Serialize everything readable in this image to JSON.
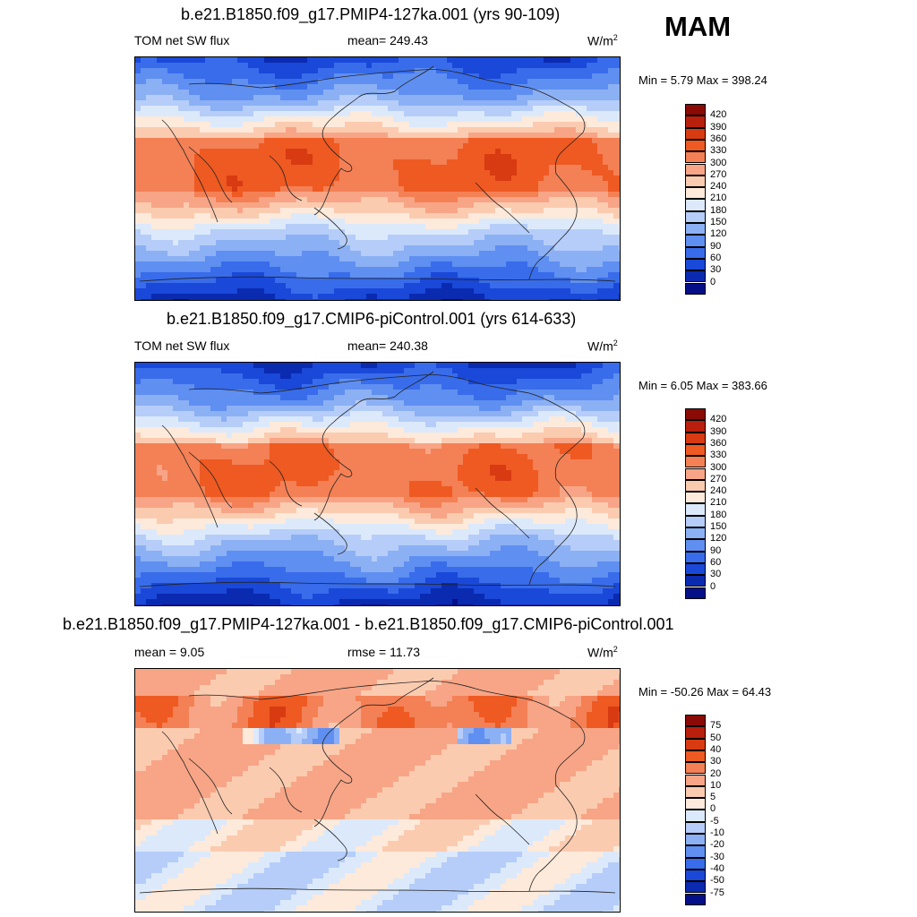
{
  "season": "MAM",
  "panels": [
    {
      "title": "b.e21.B1850.f09_g17.PMIP4-127ka.001 (yrs 90-109)",
      "left_label": "TOM net SW flux",
      "center_label": "mean= 249.43",
      "units": "W/m",
      "units_exp": "2",
      "minmax": "Min =   5.79 Max = 398.24",
      "colorbar_labels": [
        "420",
        "390",
        "360",
        "330",
        "300",
        "270",
        "240",
        "210",
        "180",
        "150",
        "120",
        "90",
        "60",
        "30",
        "0"
      ],
      "colorbar_colors": [
        "#8a0a05",
        "#b81f0c",
        "#d83a12",
        "#ee5a22",
        "#f48055",
        "#f7a586",
        "#fbcbb0",
        "#fdeadb",
        "#dce9fb",
        "#b5cdf8",
        "#8cb0f4",
        "#5f8ff0",
        "#386cea",
        "#1a48d8",
        "#0a2ab0",
        "#050f88"
      ]
    },
    {
      "title": "b.e21.B1850.f09_g17.CMIP6-piControl.001 (yrs 614-633)",
      "left_label": "TOM net SW flux",
      "center_label": "mean= 240.38",
      "units": "W/m",
      "units_exp": "2",
      "minmax": "Min =   6.05 Max = 383.66",
      "colorbar_labels": [
        "420",
        "390",
        "360",
        "330",
        "300",
        "270",
        "240",
        "210",
        "180",
        "150",
        "120",
        "90",
        "60",
        "30",
        "0"
      ],
      "colorbar_colors": [
        "#8a0a05",
        "#b81f0c",
        "#d83a12",
        "#ee5a22",
        "#f48055",
        "#f7a586",
        "#fbcbb0",
        "#fdeadb",
        "#dce9fb",
        "#b5cdf8",
        "#8cb0f4",
        "#5f8ff0",
        "#386cea",
        "#1a48d8",
        "#0a2ab0",
        "#050f88"
      ]
    },
    {
      "title": "b.e21.B1850.f09_g17.PMIP4-127ka.001 - b.e21.B1850.f09_g17.CMIP6-piControl.001",
      "left_label": "mean =   9.05",
      "center_label": "rmse =  11.73",
      "units": "W/m",
      "units_exp": "2",
      "minmax": "Min = -50.26 Max =  64.43",
      "colorbar_labels": [
        "75",
        "50",
        "40",
        "30",
        "20",
        "10",
        "5",
        "0",
        "-5",
        "-10",
        "-20",
        "-30",
        "-40",
        "-50",
        "-75"
      ],
      "colorbar_colors": [
        "#8a0a05",
        "#b81f0c",
        "#d83a12",
        "#ee5a22",
        "#f48055",
        "#f7a586",
        "#fbcbb0",
        "#fdeadb",
        "#dce9fb",
        "#b5cdf8",
        "#8cb0f4",
        "#5f8ff0",
        "#386cea",
        "#1a48d8",
        "#0a2ab0",
        "#050f88"
      ]
    }
  ],
  "chart_data": [
    {
      "type": "heatmap",
      "title": "b.e21.B1850.f09_g17.PMIP4-127ka.001 (yrs 90-109)",
      "variable": "TOM net SW flux",
      "mean": 249.43,
      "min": 5.79,
      "max": 398.24,
      "units": "W/m2",
      "levels": [
        0,
        30,
        60,
        90,
        120,
        150,
        180,
        210,
        240,
        270,
        300,
        330,
        360,
        390,
        420
      ]
    },
    {
      "type": "heatmap",
      "title": "b.e21.B1850.f09_g17.CMIP6-piControl.001 (yrs 614-633)",
      "variable": "TOM net SW flux",
      "mean": 240.38,
      "min": 6.05,
      "max": 383.66,
      "units": "W/m2",
      "levels": [
        0,
        30,
        60,
        90,
        120,
        150,
        180,
        210,
        240,
        270,
        300,
        330,
        360,
        390,
        420
      ]
    },
    {
      "type": "heatmap",
      "title": "b.e21.B1850.f09_g17.PMIP4-127ka.001 - b.e21.B1850.f09_g17.CMIP6-piControl.001",
      "mean": 9.05,
      "rmse": 11.73,
      "min": -50.26,
      "max": 64.43,
      "units": "W/m2",
      "levels": [
        -75,
        -50,
        -40,
        -30,
        -20,
        -10,
        -5,
        0,
        5,
        10,
        20,
        30,
        40,
        50,
        75
      ]
    }
  ]
}
